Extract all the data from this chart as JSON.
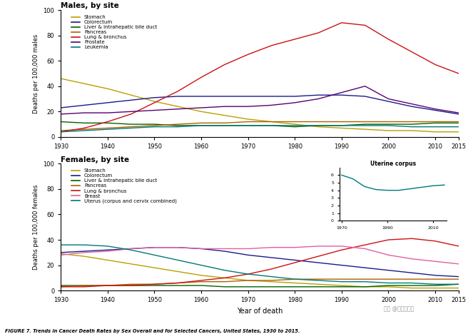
{
  "years": [
    1930,
    1935,
    1940,
    1945,
    1950,
    1955,
    1960,
    1965,
    1970,
    1975,
    1980,
    1985,
    1990,
    1995,
    2000,
    2005,
    2010,
    2015
  ],
  "males": {
    "Stomach": [
      46,
      42,
      38,
      33,
      28,
      24,
      20,
      17,
      14,
      12,
      10,
      8,
      7,
      6,
      5,
      5,
      4,
      4
    ],
    "Colorectum": [
      23,
      25,
      27,
      29,
      31,
      32,
      32,
      32,
      32,
      32,
      32,
      33,
      33,
      32,
      28,
      24,
      21,
      18
    ],
    "Liver & intrahepatic bile duct": [
      12,
      11,
      11,
      10,
      10,
      9,
      9,
      9,
      9,
      9,
      8,
      9,
      9,
      10,
      10,
      10,
      11,
      11
    ],
    "Pancreas": [
      5,
      6,
      7,
      8,
      9,
      10,
      11,
      11,
      12,
      12,
      12,
      12,
      12,
      12,
      12,
      12,
      12,
      12
    ],
    "Lung & bronchus": [
      4,
      7,
      12,
      18,
      27,
      36,
      47,
      57,
      65,
      72,
      77,
      82,
      90,
      88,
      77,
      67,
      57,
      50
    ],
    "Prostate": [
      18,
      19,
      19,
      20,
      21,
      22,
      23,
      24,
      24,
      25,
      27,
      30,
      35,
      40,
      30,
      26,
      22,
      19
    ],
    "Leukemia": [
      4,
      5,
      6,
      7,
      8,
      8,
      9,
      9,
      9,
      9,
      9,
      9,
      9,
      9,
      9,
      8,
      8,
      8
    ]
  },
  "females": {
    "Stomach": [
      29,
      27,
      24,
      21,
      18,
      15,
      12,
      10,
      8,
      7,
      6,
      5,
      4,
      3,
      3,
      2,
      2,
      2
    ],
    "Colorectum": [
      30,
      31,
      32,
      33,
      34,
      34,
      33,
      31,
      28,
      26,
      24,
      22,
      20,
      18,
      16,
      14,
      12,
      11
    ],
    "Liver & intrahepatic bile duct": [
      4,
      4,
      4,
      4,
      4,
      4,
      4,
      3,
      3,
      3,
      3,
      3,
      3,
      3,
      4,
      4,
      4,
      5
    ],
    "Pancreas": [
      3,
      4,
      4,
      5,
      5,
      6,
      7,
      7,
      8,
      8,
      9,
      9,
      9,
      9,
      9,
      9,
      9,
      9
    ],
    "Lung & bronchus": [
      3,
      3,
      4,
      4,
      5,
      6,
      8,
      10,
      13,
      17,
      22,
      27,
      32,
      36,
      40,
      41,
      39,
      35
    ],
    "Breast": [
      28,
      30,
      31,
      33,
      34,
      34,
      33,
      33,
      33,
      34,
      34,
      35,
      35,
      33,
      28,
      25,
      23,
      21
    ],
    "Uterus (corpus and cervix combined)": [
      36,
      36,
      35,
      32,
      28,
      24,
      20,
      16,
      13,
      11,
      9,
      8,
      7,
      7,
      6,
      6,
      5,
      5
    ]
  },
  "uterine_years": [
    1970,
    1975,
    1980,
    1985,
    1990,
    1995,
    2000,
    2005,
    2010,
    2015
  ],
  "uterine_corpus": [
    6.0,
    5.5,
    4.5,
    4.1,
    4.0,
    4.0,
    4.2,
    4.4,
    4.6,
    4.7
  ],
  "male_colors": {
    "Stomach": "#b8a000",
    "Colorectum": "#1a1a8c",
    "Liver & intrahepatic bile duct": "#006400",
    "Pancreas": "#b06000",
    "Lung & bronchus": "#cc1111",
    "Prostate": "#5a0070",
    "Leukemia": "#007878"
  },
  "female_colors": {
    "Stomach": "#b8a000",
    "Colorectum": "#1a1a8c",
    "Liver & intrahepatic bile duct": "#006400",
    "Pancreas": "#b06000",
    "Lung & bronchus": "#cc1111",
    "Breast": "#e060a0",
    "Uterus (corpus and cervix combined)": "#007878"
  },
  "figure_caption": "FIGURE 7. Trends in Cancer Death Rates by Sex Overall and for Selected Cancers, United States, 1930 to 2015.",
  "watermark": "知乎 @肺癌康复圈"
}
